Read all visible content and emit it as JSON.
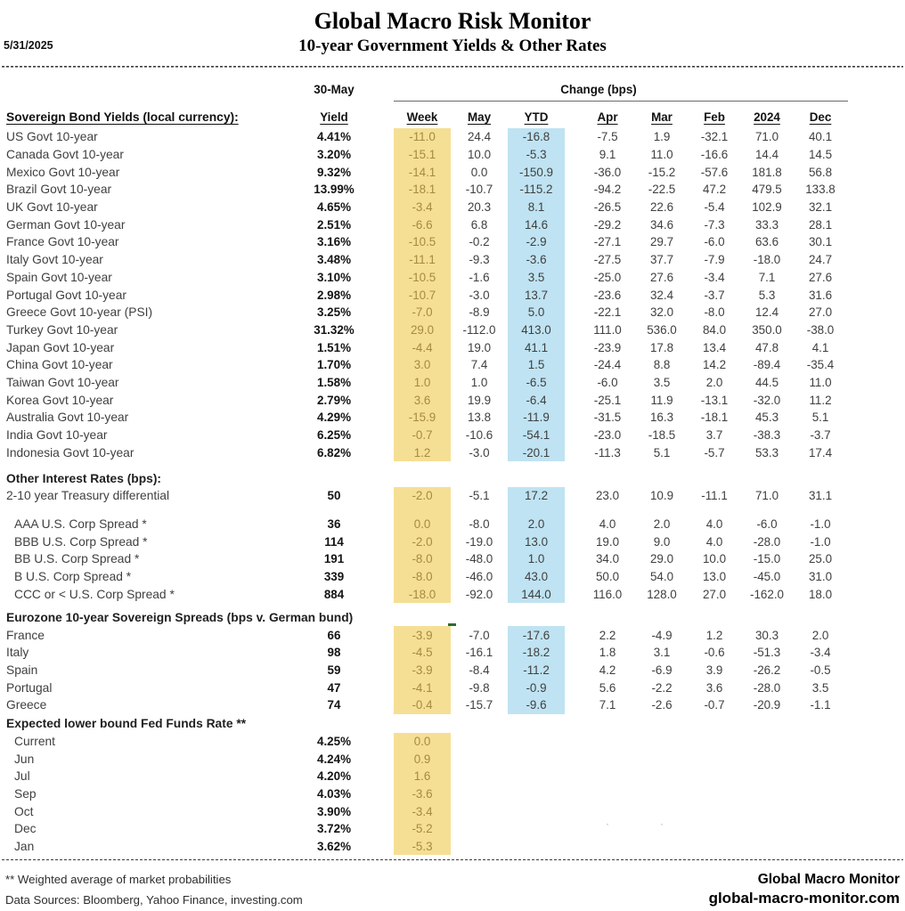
{
  "header": {
    "date": "5/31/2025",
    "title": "Global Macro Risk Monitor",
    "subtitle": "10-year Government Yields & Other Rates"
  },
  "table": {
    "date_label": "30-May",
    "change_label": "Change (bps)",
    "yield_header": "Yield",
    "change_columns": [
      "Week",
      "May",
      "YTD",
      "Apr",
      "Mar",
      "Feb",
      "2024",
      "Dec"
    ],
    "highlight_colors": {
      "week_bg": "#F5DF94",
      "week_text": "#A68A43",
      "ytd_bg": "#BFE3F2"
    },
    "sections": [
      {
        "label": "Sovereign Bond Yields (local currency):",
        "highlight": [
          "week",
          "ytd"
        ],
        "rows": [
          {
            "label": "US Govt 10-year",
            "yield": "4.41%",
            "values": [
              "-11.0",
              "24.4",
              "-16.8",
              "-7.5",
              "1.9",
              "-32.1",
              "71.0",
              "40.1"
            ]
          },
          {
            "label": "Canada Govt 10-year",
            "yield": "3.20%",
            "values": [
              "-15.1",
              "10.0",
              "-5.3",
              "9.1",
              "11.0",
              "-16.6",
              "14.4",
              "14.5"
            ]
          },
          {
            "label": "Mexico Govt 10-year",
            "yield": "9.32%",
            "values": [
              "-14.1",
              "0.0",
              "-150.9",
              "-36.0",
              "-15.2",
              "-57.6",
              "181.8",
              "56.8"
            ]
          },
          {
            "label": "Brazil Govt 10-year",
            "yield": "13.99%",
            "values": [
              "-18.1",
              "-10.7",
              "-115.2",
              "-94.2",
              "-22.5",
              "47.2",
              "479.5",
              "133.8"
            ]
          },
          {
            "label": "UK Govt 10-year",
            "yield": "4.65%",
            "values": [
              "-3.4",
              "20.3",
              "8.1",
              "-26.5",
              "22.6",
              "-5.4",
              "102.9",
              "32.1"
            ]
          },
          {
            "label": "German Govt 10-year",
            "yield": "2.51%",
            "values": [
              "-6.6",
              "6.8",
              "14.6",
              "-29.2",
              "34.6",
              "-7.3",
              "33.3",
              "28.1"
            ]
          },
          {
            "label": "France Govt 10-year",
            "yield": "3.16%",
            "values": [
              "-10.5",
              "-0.2",
              "-2.9",
              "-27.1",
              "29.7",
              "-6.0",
              "63.6",
              "30.1"
            ]
          },
          {
            "label": "Italy Govt 10-year",
            "yield": "3.48%",
            "values": [
              "-11.1",
              "-9.3",
              "-3.6",
              "-27.5",
              "37.7",
              "-7.9",
              "-18.0",
              "24.7"
            ]
          },
          {
            "label": "Spain Govt 10-year",
            "yield": "3.10%",
            "values": [
              "-10.5",
              "-1.6",
              "3.5",
              "-25.0",
              "27.6",
              "-3.4",
              "7.1",
              "27.6"
            ]
          },
          {
            "label": "Portugal Govt 10-year",
            "yield": "2.98%",
            "values": [
              "-10.7",
              "-3.0",
              "13.7",
              "-23.6",
              "32.4",
              "-3.7",
              "5.3",
              "31.6"
            ]
          },
          {
            "label": "Greece Govt 10-year (PSI)",
            "yield": "3.25%",
            "values": [
              "-7.0",
              "-8.9",
              "5.0",
              "-22.1",
              "32.0",
              "-8.0",
              "12.4",
              "27.0"
            ]
          },
          {
            "label": "Turkey Govt 10-year",
            "yield": "31.32%",
            "values": [
              "29.0",
              "-112.0",
              "413.0",
              "111.0",
              "536.0",
              "84.0",
              "350.0",
              "-38.0"
            ]
          },
          {
            "label": "Japan Govt 10-year",
            "yield": "1.51%",
            "values": [
              "-4.4",
              "19.0",
              "41.1",
              "-23.9",
              "17.8",
              "13.4",
              "47.8",
              "4.1"
            ]
          },
          {
            "label": "China Govt 10-year",
            "yield": "1.70%",
            "values": [
              "3.0",
              "7.4",
              "1.5",
              "-24.4",
              "8.8",
              "14.2",
              "-89.4",
              "-35.4"
            ]
          },
          {
            "label": "Taiwan Govt 10-year",
            "yield": "1.58%",
            "values": [
              "1.0",
              "1.0",
              "-6.5",
              "-6.0",
              "3.5",
              "2.0",
              "44.5",
              "11.0"
            ]
          },
          {
            "label": "Korea Govt 10-year",
            "yield": "2.79%",
            "values": [
              "3.6",
              "19.9",
              "-6.4",
              "-25.1",
              "11.9",
              "-13.1",
              "-32.0",
              "11.2"
            ]
          },
          {
            "label": "Australia Govt 10-year",
            "yield": "4.29%",
            "values": [
              "-15.9",
              "13.8",
              "-11.9",
              "-31.5",
              "16.3",
              "-18.1",
              "45.3",
              "5.1"
            ]
          },
          {
            "label": "India Govt 10-year",
            "yield": "6.25%",
            "values": [
              "-0.7",
              "-10.6",
              "-54.1",
              "-23.0",
              "-18.5",
              "3.7",
              "-38.3",
              "-3.7"
            ]
          },
          {
            "label": "Indonesia Govt 10-year",
            "yield": "6.82%",
            "values": [
              "1.2",
              "-3.0",
              "-20.1",
              "-11.3",
              "5.1",
              "-5.7",
              "53.3",
              "17.4"
            ]
          }
        ]
      },
      {
        "label": "Other Interest Rates  (bps):",
        "highlight": [
          "week",
          "ytd"
        ],
        "rows": [
          {
            "label": "2-10 year Treasury differential",
            "yield": "50",
            "values": [
              "-2.0",
              "-5.1",
              "17.2",
              "23.0",
              "10.9",
              "-11.1",
              "71.0",
              "31.1"
            ]
          },
          {
            "spacer": true
          },
          {
            "label": "AAA U.S. Corp Spread *",
            "yield": "36",
            "indent": true,
            "values": [
              "0.0",
              "-8.0",
              "2.0",
              "4.0",
              "2.0",
              "4.0",
              "-6.0",
              "-1.0"
            ]
          },
          {
            "label": "BBB U.S. Corp Spread *",
            "yield": "114",
            "indent": true,
            "values": [
              "-2.0",
              "-19.0",
              "13.0",
              "19.0",
              "9.0",
              "4.0",
              "-28.0",
              "-1.0"
            ]
          },
          {
            "label": "BB U.S. Corp Spread *",
            "yield": "191",
            "indent": true,
            "values": [
              "-8.0",
              "-48.0",
              "1.0",
              "34.0",
              "29.0",
              "10.0",
              "-15.0",
              "25.0"
            ]
          },
          {
            "label": "B U.S. Corp Spread *",
            "yield": "339",
            "indent": true,
            "values": [
              "-8.0",
              "-46.0",
              "43.0",
              "50.0",
              "54.0",
              "13.0",
              "-45.0",
              "31.0"
            ]
          },
          {
            "label": "CCC or < U.S. Corp Spread *",
            "yield": "884",
            "indent": true,
            "values": [
              "-18.0",
              "-92.0",
              "144.0",
              "116.0",
              "128.0",
              "27.0",
              "-162.0",
              "18.0"
            ]
          }
        ]
      },
      {
        "label": "Eurozone 10-year Sovereign Spreads (bps v. German bund)",
        "highlight": [
          "week",
          "ytd"
        ],
        "rows": [
          {
            "label": "France",
            "yield": "66",
            "values": [
              "-3.9",
              "-7.0",
              "-17.6",
              "2.2",
              "-4.9",
              "1.2",
              "30.3",
              "2.0"
            ]
          },
          {
            "label": "Italy",
            "yield": "98",
            "values": [
              "-4.5",
              "-16.1",
              "-18.2",
              "1.8",
              "3.1",
              "-0.6",
              "-51.3",
              "-3.4"
            ]
          },
          {
            "label": "Spain",
            "yield": "59",
            "values": [
              "-3.9",
              "-8.4",
              "-11.2",
              "4.2",
              "-6.9",
              "3.9",
              "-26.2",
              "-0.5"
            ]
          },
          {
            "label": "Portugal",
            "yield": "47",
            "values": [
              "-4.1",
              "-9.8",
              "-0.9",
              "5.6",
              "-2.2",
              "3.6",
              "-28.0",
              "3.5"
            ]
          },
          {
            "label": "Greece",
            "yield": "74",
            "values": [
              "-0.4",
              "-15.7",
              "-9.6",
              "7.1",
              "-2.6",
              "-0.7",
              "-20.9",
              "-1.1"
            ]
          }
        ]
      },
      {
        "label": "Expected lower bound Fed Funds Rate **",
        "highlight": [
          "week"
        ],
        "rows": [
          {
            "label": "Current",
            "yield": "4.25%",
            "indent": true,
            "values": [
              "0.0"
            ]
          },
          {
            "label": "Jun",
            "yield": "4.24%",
            "indent": true,
            "values": [
              "0.9"
            ]
          },
          {
            "label": "Jul",
            "yield": "4.20%",
            "indent": true,
            "values": [
              "1.6"
            ]
          },
          {
            "label": "Sep",
            "yield": "4.03%",
            "indent": true,
            "values": [
              "-3.6"
            ]
          },
          {
            "label": "Oct",
            "yield": "3.90%",
            "indent": true,
            "values": [
              "-3.4"
            ]
          },
          {
            "label": "Dec",
            "yield": "3.72%",
            "indent": true,
            "values": [
              "-5.2"
            ],
            "marks": {
              "3": "ˋ",
              "4": "ˋ"
            }
          },
          {
            "label": "Jan",
            "yield": "3.62%",
            "indent": true,
            "values": [
              "-5.3"
            ]
          }
        ]
      }
    ]
  },
  "annotations": {
    "comment_marker_color": "#2F6B33"
  },
  "footer": {
    "footnote": "** Weighted average of market probabilities",
    "data_sources": "Data Sources:  Bloomberg,  Yahoo Finance, investing.com",
    "brand": "Global Macro Monitor",
    "site": "global-macro-monitor.com"
  }
}
